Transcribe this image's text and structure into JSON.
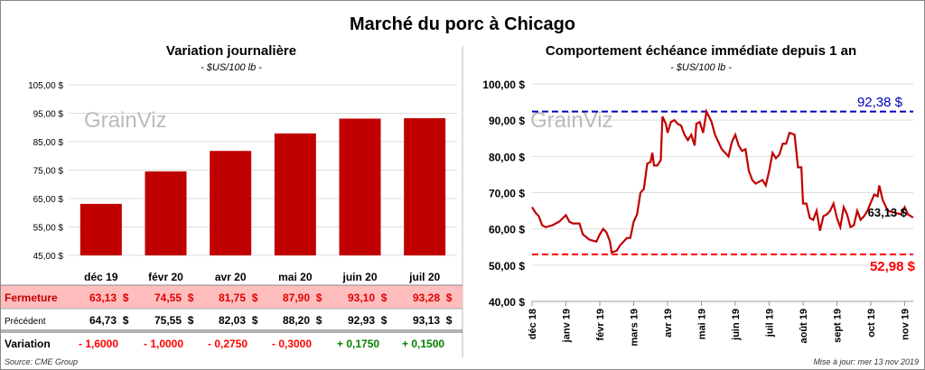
{
  "title": "Marché du porc à Chicago",
  "source": "Source: CME Group",
  "updated": "Mise à jour: mer 13 nov 2019",
  "watermark": "GrainViz",
  "colors": {
    "bar": "#c00000",
    "line": "#c00000",
    "max": "#0000c0",
    "min": "#ff0000",
    "up": "#008000",
    "down": "#ff0000",
    "highlight": "#ffbdbd"
  },
  "chart_data": [
    {
      "type": "bar",
      "title": "Variation journalière",
      "subtitle": "- $US/100 lb -",
      "categories": [
        "déc 19",
        "févr 20",
        "avr 20",
        "mai 20",
        "juin 20",
        "juil 20"
      ],
      "values": [
        63.13,
        74.55,
        81.75,
        87.9,
        93.1,
        93.28
      ],
      "ylim": [
        45,
        105
      ],
      "yticks": [
        "45,00 $",
        "55,00 $",
        "65,00 $",
        "75,00 $",
        "85,00 $",
        "95,00 $",
        "105,00 $"
      ],
      "table": {
        "rows": [
          {
            "label": "Fermeture",
            "values": [
              "63,13  $",
              "74,55  $",
              "81,75  $",
              "87,90  $",
              "93,10  $",
              "93,28  $"
            ]
          },
          {
            "label": "Précédent",
            "values": [
              "64,73  $",
              "75,55  $",
              "82,03  $",
              "88,20  $",
              "92,93  $",
              "93,13  $"
            ]
          },
          {
            "label": "Variation",
            "values": [
              "- 1,6000",
              "- 1,0000",
              "- 0,2750",
              "- 0,3000",
              "+ 0,1750",
              "+ 0,1500"
            ]
          }
        ]
      }
    },
    {
      "type": "line",
      "title": "Comportement  échéance immédiate depuis 1 an",
      "subtitle": "- $US/100 lb -",
      "ylim": [
        40,
        100
      ],
      "yticks": [
        "40,00 $",
        "50,00 $",
        "60,00 $",
        "70,00 $",
        "80,00 $",
        "90,00 $",
        "100,00 $"
      ],
      "xticks": [
        "déc 18",
        "janv 19",
        "févr 19",
        "mars 19",
        "avr 19",
        "mai 19",
        "juin 19",
        "juil 19",
        "août 19",
        "sept 19",
        "oct 19",
        "nov 19"
      ],
      "max": 92.38,
      "max_label": "92,38 $",
      "min": 52.98,
      "min_label": "52,98 $",
      "last_label": "63,13 $",
      "points": [
        [
          0,
          66
        ],
        [
          0.1,
          64.5
        ],
        [
          0.2,
          63.5
        ],
        [
          0.3,
          61
        ],
        [
          0.4,
          60.5
        ],
        [
          0.6,
          61
        ],
        [
          0.8,
          62
        ],
        [
          1,
          63.8
        ],
        [
          1.1,
          62
        ],
        [
          1.2,
          61.5
        ],
        [
          1.4,
          61.5
        ],
        [
          1.5,
          58.5
        ],
        [
          1.7,
          57
        ],
        [
          1.9,
          56.5
        ],
        [
          2,
          58.5
        ],
        [
          2.1,
          60
        ],
        [
          2.2,
          59
        ],
        [
          2.3,
          56.5
        ],
        [
          2.35,
          53.5
        ],
        [
          2.5,
          54
        ],
        [
          2.6,
          55.5
        ],
        [
          2.8,
          57.5
        ],
        [
          2.9,
          57.5
        ],
        [
          3,
          62
        ],
        [
          3.1,
          64
        ],
        [
          3.2,
          70
        ],
        [
          3.3,
          71
        ],
        [
          3.4,
          78
        ],
        [
          3.5,
          78.5
        ],
        [
          3.55,
          81
        ],
        [
          3.6,
          77.5
        ],
        [
          3.7,
          77.5
        ],
        [
          3.8,
          79
        ],
        [
          3.85,
          91
        ],
        [
          3.95,
          89
        ],
        [
          4,
          86.5
        ],
        [
          4.1,
          89.5
        ],
        [
          4.2,
          90
        ],
        [
          4.3,
          89
        ],
        [
          4.4,
          88.5
        ],
        [
          4.5,
          86
        ],
        [
          4.6,
          84.5
        ],
        [
          4.7,
          86
        ],
        [
          4.8,
          83
        ],
        [
          4.85,
          89
        ],
        [
          4.95,
          89.5
        ],
        [
          5.05,
          86.5
        ],
        [
          5.15,
          92.38
        ],
        [
          5.3,
          89.5
        ],
        [
          5.4,
          86
        ],
        [
          5.5,
          84
        ],
        [
          5.6,
          82
        ],
        [
          5.8,
          80
        ],
        [
          5.9,
          84
        ],
        [
          6,
          86
        ],
        [
          6.1,
          83
        ],
        [
          6.2,
          81.5
        ],
        [
          6.3,
          82
        ],
        [
          6.4,
          76
        ],
        [
          6.5,
          73.5
        ],
        [
          6.6,
          72.5
        ],
        [
          6.8,
          73.5
        ],
        [
          6.9,
          72
        ],
        [
          7,
          76
        ],
        [
          7.1,
          81
        ],
        [
          7.2,
          79.5
        ],
        [
          7.3,
          80.5
        ],
        [
          7.4,
          83.5
        ],
        [
          7.5,
          83.5
        ],
        [
          7.6,
          86.5
        ],
        [
          7.75,
          86
        ],
        [
          7.85,
          77
        ],
        [
          7.95,
          77
        ],
        [
          8,
          67
        ],
        [
          8.1,
          67
        ],
        [
          8.2,
          63
        ],
        [
          8.3,
          62.5
        ],
        [
          8.4,
          65
        ],
        [
          8.5,
          59.5
        ],
        [
          8.6,
          63.5
        ],
        [
          8.7,
          64
        ],
        [
          8.8,
          65
        ],
        [
          8.9,
          67
        ],
        [
          9,
          63
        ],
        [
          9.1,
          60.5
        ],
        [
          9.2,
          66
        ],
        [
          9.3,
          64
        ],
        [
          9.4,
          60.5
        ],
        [
          9.5,
          61
        ],
        [
          9.6,
          65
        ],
        [
          9.7,
          62.5
        ],
        [
          9.8,
          63.5
        ],
        [
          9.9,
          65
        ],
        [
          10.1,
          69.5
        ],
        [
          10.2,
          69
        ],
        [
          10.25,
          72
        ],
        [
          10.35,
          68
        ],
        [
          10.5,
          65
        ],
        [
          10.7,
          64.5
        ],
        [
          10.9,
          64
        ],
        [
          11,
          66
        ],
        [
          11.1,
          64
        ],
        [
          11.25,
          63.13
        ]
      ]
    }
  ]
}
